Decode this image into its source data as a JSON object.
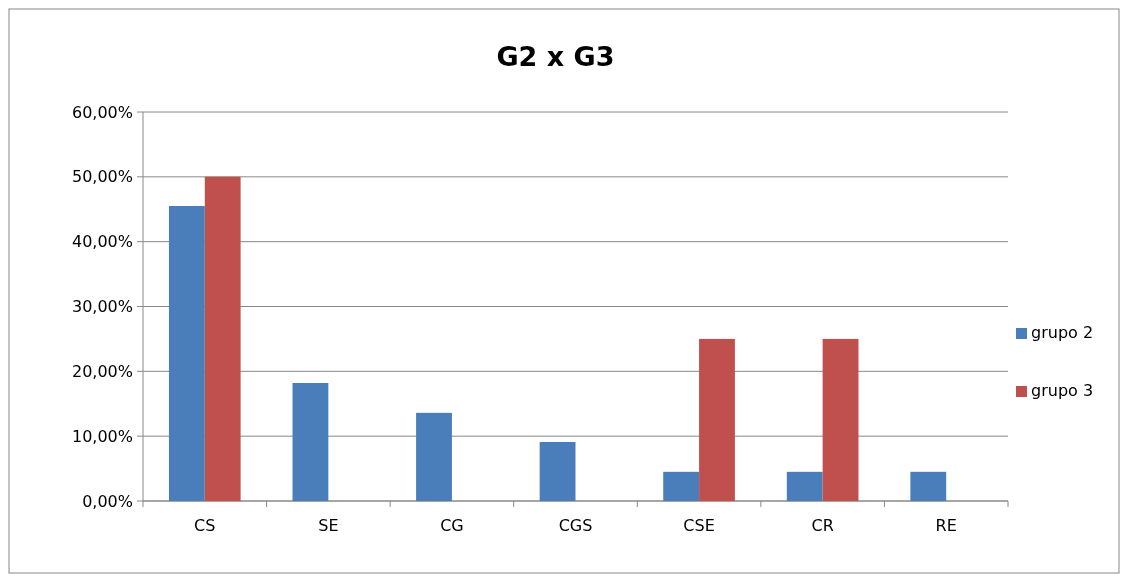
{
  "chart_data": {
    "type": "bar",
    "title": "G2 x G3",
    "categories": [
      "CS",
      "SE",
      "CG",
      "CGS",
      "CSE",
      "CR",
      "RE"
    ],
    "series": [
      {
        "name": "grupo 2",
        "color": "#4a7ebb",
        "values": [
          45.5,
          18.2,
          13.6,
          9.1,
          4.5,
          4.5,
          4.5
        ]
      },
      {
        "name": "grupo 3",
        "color": "#c0504d",
        "values": [
          50,
          null,
          null,
          null,
          25,
          25,
          null
        ]
      }
    ],
    "ylim": [
      0,
      60
    ],
    "yticks": [
      {
        "value": 0,
        "label": "0,00%"
      },
      {
        "value": 10,
        "label": "10,00%"
      },
      {
        "value": 20,
        "label": "20,00%"
      },
      {
        "value": 30,
        "label": "30,00%"
      },
      {
        "value": 40,
        "label": "40,00%"
      },
      {
        "value": 50,
        "label": "50,00%"
      },
      {
        "value": 60,
        "label": "60,00%"
      }
    ],
    "grid": "y",
    "legend": "right"
  }
}
